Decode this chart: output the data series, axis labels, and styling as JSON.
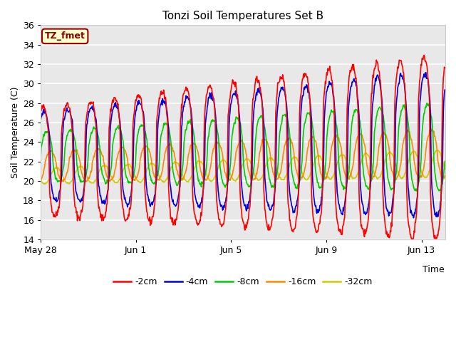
{
  "title": "Tonzi Soil Temperatures Set B",
  "xlabel": "Time",
  "ylabel": "Soil Temperature (C)",
  "ylim": [
    14,
    36
  ],
  "xlim_days": 17.0,
  "annotation_text": "TZ_fmet",
  "annotation_facecolor": "#ffffcc",
  "annotation_edgecolor": "#990000",
  "bg_color": "#e8e8e8",
  "grid_color": "#ffffff",
  "legend_entries": [
    "-2cm",
    "-4cm",
    "-8cm",
    "-16cm",
    "-32cm"
  ],
  "legend_colors": [
    "#ff0000",
    "#0000dd",
    "#00cc00",
    "#ff8800",
    "#cccc00"
  ],
  "line_width": 1.2,
  "xtick_labels": [
    "May 28",
    "Jun 1",
    "Jun 5",
    "Jun 9",
    "Jun 13"
  ],
  "xtick_positions": [
    0,
    4,
    8,
    12,
    16
  ],
  "ytick_positions": [
    14,
    16,
    18,
    20,
    22,
    24,
    26,
    28,
    30,
    32,
    34,
    36
  ]
}
